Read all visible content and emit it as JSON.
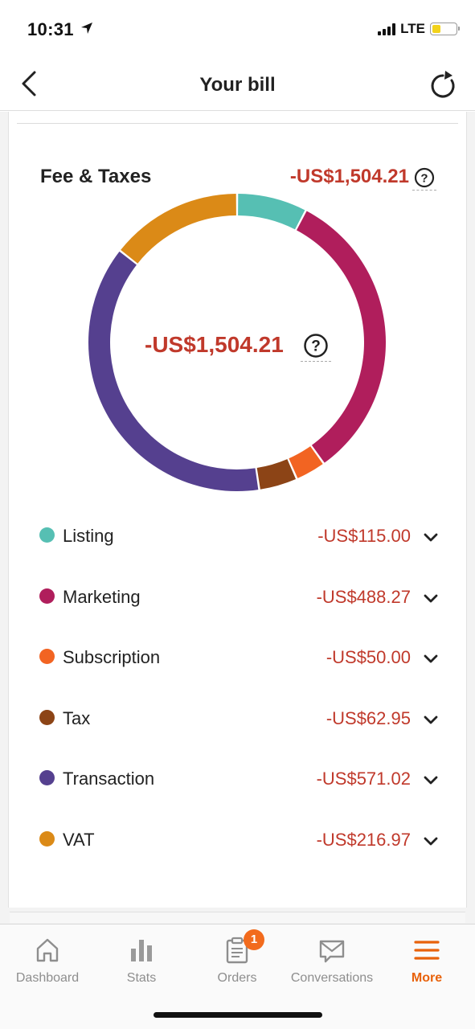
{
  "status_bar": {
    "time": "10:31",
    "network": "LTE",
    "battery_level": 0.35
  },
  "nav": {
    "title": "Your bill",
    "back_icon": "chevron-left-icon",
    "refresh_icon": "refresh-icon"
  },
  "summary": {
    "title": "Fee & Taxes",
    "total": "-US$1,504.21",
    "center_total": "-US$1,504.21"
  },
  "chart_data": {
    "type": "pie",
    "donut": true,
    "categories": [
      "Listing",
      "Marketing",
      "Subscription",
      "Tax",
      "Transaction",
      "VAT"
    ],
    "values": [
      115.0,
      488.27,
      50.0,
      62.95,
      571.02,
      216.97
    ],
    "colors": [
      "#56bfb3",
      "#b01e5c",
      "#f26422",
      "#8c4416",
      "#55408f",
      "#db8a17"
    ],
    "title": "",
    "legend": "bottom"
  },
  "legend": [
    {
      "label": "Listing",
      "value": "-US$115.00",
      "color": "#56bfb3"
    },
    {
      "label": "Marketing",
      "value": "-US$488.27",
      "color": "#b01e5c"
    },
    {
      "label": "Subscription",
      "value": "-US$50.00",
      "color": "#f26422"
    },
    {
      "label": "Tax",
      "value": "-US$62.95",
      "color": "#8c4416"
    },
    {
      "label": "Transaction",
      "value": "-US$571.02",
      "color": "#55408f"
    },
    {
      "label": "VAT",
      "value": "-US$216.97",
      "color": "#db8a17"
    }
  ],
  "tabs": [
    {
      "label": "Dashboard",
      "icon": "home-icon",
      "active": false
    },
    {
      "label": "Stats",
      "icon": "bar-chart-icon",
      "active": false
    },
    {
      "label": "Orders",
      "icon": "clipboard-icon",
      "active": false,
      "badge": "1"
    },
    {
      "label": "Conversations",
      "icon": "envelope-icon",
      "active": false
    },
    {
      "label": "More",
      "icon": "menu-icon",
      "active": true
    }
  ],
  "colors": {
    "accent": "#e8620b",
    "negative": "#c0392b"
  }
}
